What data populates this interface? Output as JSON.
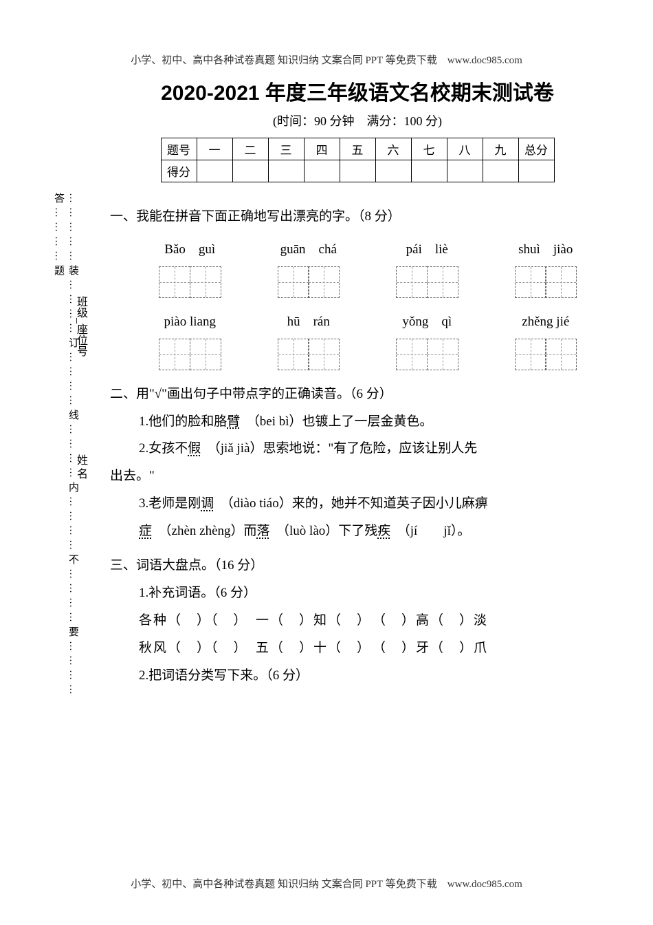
{
  "header_footer": "小学、初中、高中各种试卷真题 知识归纳 文案合同 PPT 等免费下载　www.doc985.com",
  "title": "2020-2021 年度三年级语文名校期末测试卷",
  "subtitle": "(时间：90 分钟　满分：100 分)",
  "score_table": {
    "row1_label": "题号",
    "row2_label": "得分",
    "columns": [
      "一",
      "二",
      "三",
      "四",
      "五",
      "六",
      "七",
      "八",
      "九",
      "总分"
    ]
  },
  "sidebar": {
    "binding_line": "……………装…………订…………线…………内…………不…………要…………答…………题",
    "name_label": "姓 名",
    "class_label": "班级_座位号"
  },
  "sections": {
    "s1": {
      "heading": "一、我能在拼音下面正确地写出漂亮的字。（8 分）",
      "pinyin_row1": [
        "Bǎo　guì",
        "guān　chá",
        "pái　liè",
        "shuì　jiào"
      ],
      "pinyin_row2": [
        "piào liang",
        "hū　rán",
        "yǒng　qì",
        "zhěng jié"
      ]
    },
    "s2": {
      "heading": "二、用\"√\"画出句子中带点字的正确读音。（6 分）",
      "q1_a": "1.他们的脸和胳",
      "q1_b": "臂",
      "q1_c": "　（bei bì）也镀上了一层金黄色。",
      "q2_a": "2.女孩不",
      "q2_b": "假",
      "q2_c": "　（jiǎ jià）思索地说：\"有了危险，应该让别人先",
      "q2_d": "出去。\"",
      "q3_a": "3.老师是刚",
      "q3_b": "调",
      "q3_c": "　（diào tiáo）来的，她并不知道英子因小儿麻痹",
      "q3_d": "症",
      "q3_e": "　（zhèn zhèng）而",
      "q3_f": "落",
      "q3_g": "　（luò lào）下了残",
      "q3_h": "疾",
      "q3_i": "　（jí　　jǐ）。"
    },
    "s3": {
      "heading": "三、词语大盘点。（16 分）",
      "sub1": "1.补充词语。（6 分）",
      "line1": "各种（　）（　）　一（　）知（　）　（　）高（　）淡",
      "line2": "秋风（　）（　）　五（　）十（　）　（　）牙（　）爪",
      "sub2": "2.把词语分类写下来。（6 分）"
    }
  },
  "colors": {
    "text": "#000000",
    "background": "#ffffff",
    "dash": "#666666"
  }
}
